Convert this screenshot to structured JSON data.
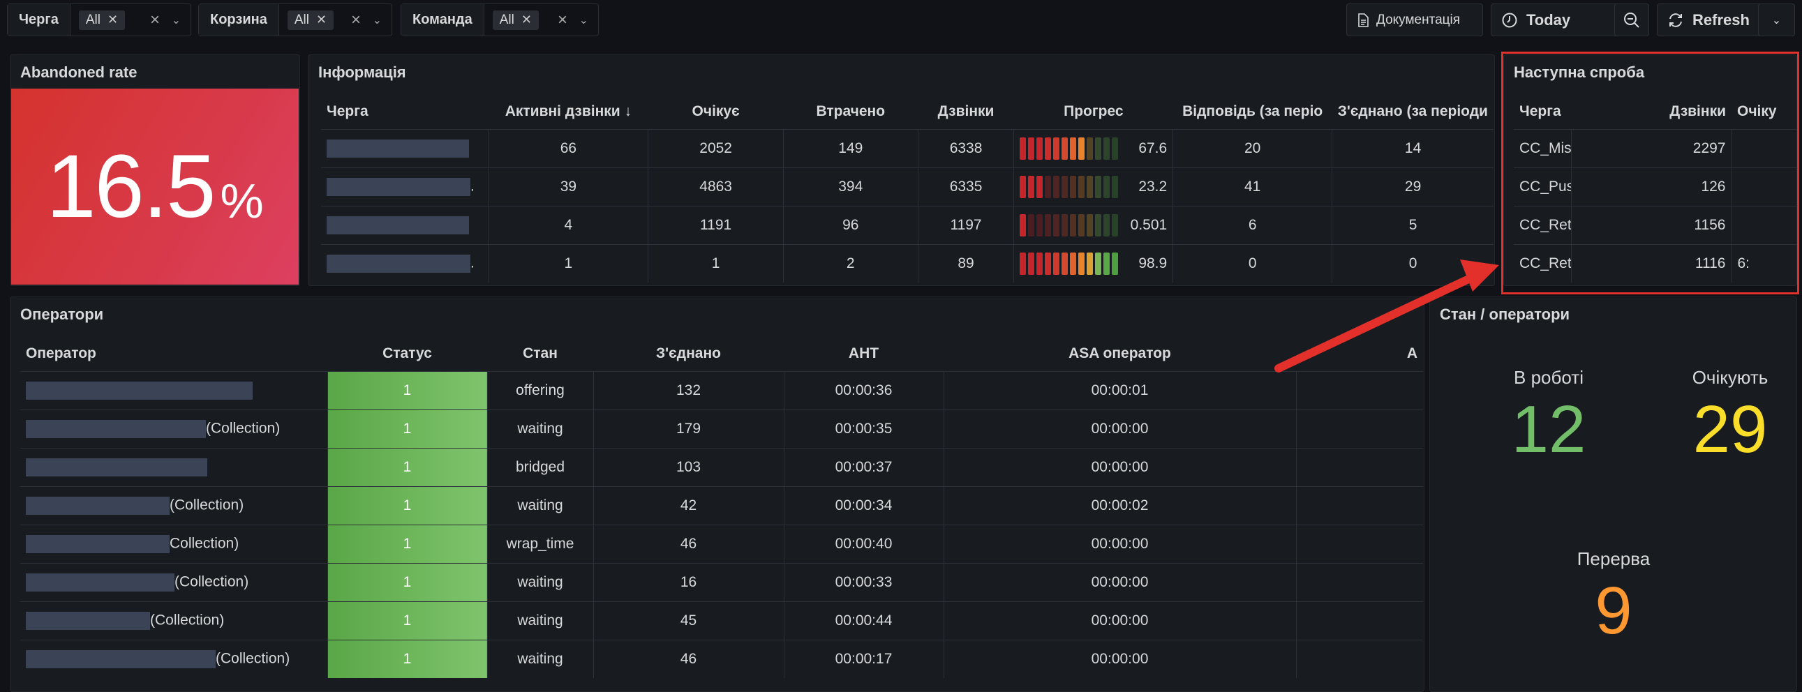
{
  "variables": [
    {
      "label": "Черга",
      "value": "All"
    },
    {
      "label": "Корзина",
      "value": "All"
    },
    {
      "label": "Команда",
      "value": "All"
    }
  ],
  "toolbar": {
    "docs_label": "Документація",
    "time_label": "Today",
    "refresh_label": "Refresh"
  },
  "abandoned": {
    "title": "Abandoned rate",
    "value": "16.5",
    "unit": "%",
    "color": "#d83a4a"
  },
  "info": {
    "title": "Інформація",
    "columns": [
      "Черга",
      "Активні дзвінки",
      "Очікує",
      "Втрачено",
      "Дзвінки",
      "Прогрес",
      "Відповідь (за періо",
      "З'єднано (за періоди"
    ],
    "sort_column": "Активні дзвінки",
    "rows": [
      {
        "active": "66",
        "waiting": "2052",
        "lost": "149",
        "calls": "6338",
        "progress": 67.6,
        "progress_label": "67.6",
        "answered": "20",
        "connected": "14",
        "name_suffix": ""
      },
      {
        "active": "39",
        "waiting": "4863",
        "lost": "394",
        "calls": "6335",
        "progress": 23.2,
        "progress_label": "23.2",
        "answered": "41",
        "connected": "29",
        "name_suffix": "."
      },
      {
        "active": "4",
        "waiting": "1191",
        "lost": "96",
        "calls": "1197",
        "progress": 0.501,
        "progress_label": "0.501",
        "answered": "6",
        "connected": "5",
        "name_suffix": ""
      },
      {
        "active": "1",
        "waiting": "1",
        "lost": "2",
        "calls": "89",
        "progress": 98.9,
        "progress_label": "98.9",
        "answered": "0",
        "connected": "0",
        "name_suffix": "."
      }
    ]
  },
  "next_try": {
    "title": "Наступна спроба",
    "columns": [
      "Черга",
      "Дзвінки",
      "Очіку"
    ],
    "rows": [
      {
        "queue": "CC_Mis",
        "calls": "2297",
        "extra": ""
      },
      {
        "queue": "CC_Pus",
        "calls": "126",
        "extra": ""
      },
      {
        "queue": "CC_Ret",
        "calls": "1156",
        "extra": ""
      },
      {
        "queue": "CC_Ret",
        "calls": "1116",
        "extra": "6:"
      }
    ]
  },
  "operators": {
    "title": "Оператори",
    "columns": [
      "Оператор",
      "Статус",
      "Стан",
      "З'єднано",
      "AHT",
      "ASA оператор",
      "A"
    ],
    "rows": [
      {
        "suffix": "",
        "status": "1",
        "state": "offering",
        "connected": "132",
        "aht": "00:00:36",
        "asa": "00:00:01"
      },
      {
        "suffix": "(Collection)",
        "status": "1",
        "state": "waiting",
        "connected": "179",
        "aht": "00:00:35",
        "asa": "00:00:00"
      },
      {
        "suffix": "",
        "status": "1",
        "state": "bridged",
        "connected": "103",
        "aht": "00:00:37",
        "asa": "00:00:00"
      },
      {
        "suffix": "(Collection)",
        "status": "1",
        "state": "waiting",
        "connected": "42",
        "aht": "00:00:34",
        "asa": "00:00:02"
      },
      {
        "suffix": "Collection)",
        "status": "1",
        "state": "wrap_time",
        "connected": "46",
        "aht": "00:00:40",
        "asa": "00:00:00"
      },
      {
        "suffix": "(Collection)",
        "status": "1",
        "state": "waiting",
        "connected": "16",
        "aht": "00:00:33",
        "asa": "00:00:00"
      },
      {
        "suffix": "(Collection)",
        "status": "1",
        "state": "waiting",
        "connected": "45",
        "aht": "00:00:44",
        "asa": "00:00:00"
      },
      {
        "suffix": "(Collection)",
        "status": "1",
        "state": "waiting",
        "connected": "46",
        "aht": "00:00:17",
        "asa": "00:00:00"
      }
    ]
  },
  "state_panel": {
    "title": "Стан / оператори",
    "in_work": {
      "label": "В роботі",
      "value": "12",
      "color": "#73bf69"
    },
    "waiting": {
      "label": "Очікують",
      "value": "29",
      "color": "#fade2a"
    },
    "break": {
      "label": "Перерва",
      "value": "9",
      "color": "#ff9830"
    }
  },
  "colors": {
    "annotation": "#e3302b",
    "status_green": "#73bf69"
  }
}
